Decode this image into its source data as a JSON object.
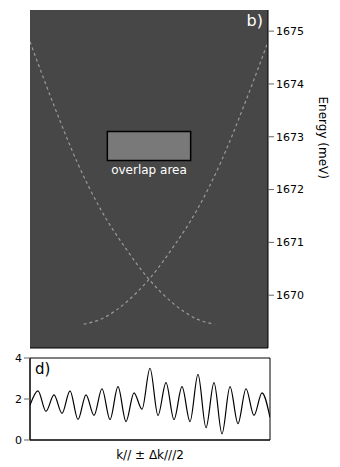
{
  "chart_data": [
    {
      "type": "line",
      "title": "b)",
      "ylabel": "Energy (meV)",
      "xlim": [
        -1,
        1
      ],
      "ylim": [
        1669,
        1675.4
      ],
      "yticks": [
        1670,
        1671,
        1672,
        1673,
        1674,
        1675
      ],
      "tick_labels": "y",
      "annotation": "overlap area",
      "overlap_box": {
        "xlim": [
          -0.35,
          0.35
        ],
        "ylim": [
          1672.55,
          1673.1
        ]
      },
      "series": [
        {
          "color": "#9a9a9a",
          "line_style": "dashed",
          "x": [
            -1,
            -0.8,
            -0.6,
            -0.4,
            -0.2,
            0,
            0.2,
            0.4,
            0.55
          ],
          "values": [
            1674.8,
            1673.6,
            1672.5,
            1671.6,
            1670.9,
            1670.3,
            1669.85,
            1669.55,
            1669.45
          ]
        },
        {
          "color": "#9a9a9a",
          "line_style": "dashed",
          "x": [
            -0.55,
            -0.4,
            -0.2,
            0,
            0.2,
            0.4,
            0.6,
            0.8,
            1
          ],
          "values": [
            1669.45,
            1669.55,
            1669.85,
            1670.3,
            1670.9,
            1671.6,
            1672.5,
            1673.6,
            1674.8
          ]
        }
      ]
    },
    {
      "type": "line",
      "title": "d)",
      "xlabel": "k// ± Δk///2",
      "tick_labels": "y",
      "color": "#000000",
      "x": [
        0,
        1,
        2,
        3,
        4,
        5,
        6,
        7,
        8,
        9,
        10,
        11,
        12,
        13,
        14,
        15,
        16,
        17,
        18,
        19,
        20,
        21,
        22,
        23,
        24,
        25,
        26,
        27,
        28,
        29,
        30
      ],
      "values": [
        1.7,
        2.4,
        1.4,
        2.2,
        1.3,
        2.4,
        1.0,
        2.2,
        1.2,
        2.5,
        1.0,
        2.6,
        0.9,
        2.3,
        1.5,
        3.5,
        1.2,
        2.8,
        1.0,
        2.6,
        0.9,
        3.2,
        0.6,
        2.8,
        0.3,
        2.6,
        0.8,
        2.5,
        1.2,
        2.3,
        1.1
      ],
      "xlim": [
        0,
        30
      ],
      "ylim": [
        0,
        4
      ],
      "yticks": [
        0,
        2,
        4
      ]
    }
  ]
}
